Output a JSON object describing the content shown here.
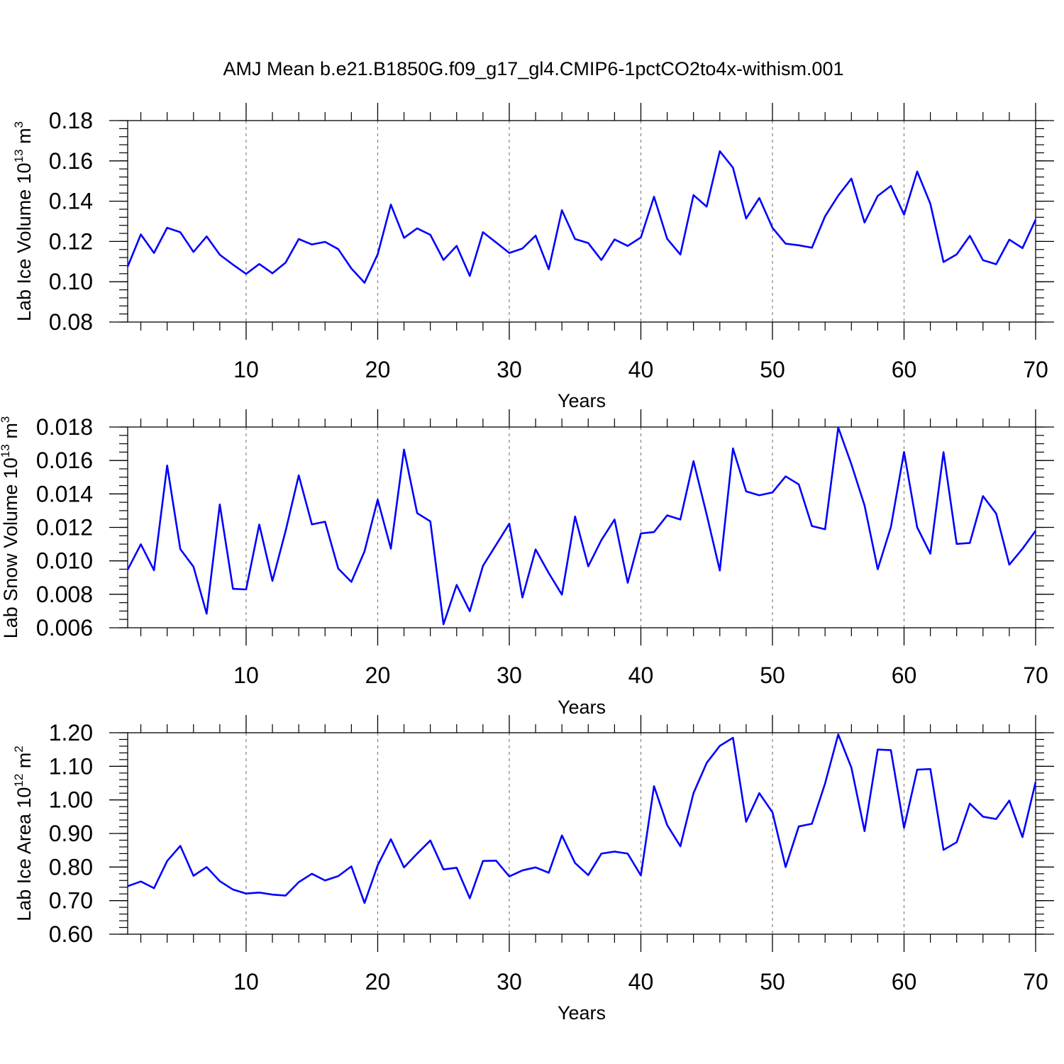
{
  "title": "AMJ Mean b.e21.B1850G.f09_g17_gl4.CMIP6-1pctCO2to4x-withism.001",
  "colors": {
    "line": "#0000ff",
    "axis": "#000000",
    "grid": "#808080"
  },
  "chart_data": [
    {
      "type": "line",
      "xlabel": "Years",
      "ylabel": {
        "text": "Lab Ice Volume 10",
        "sup1": "13",
        "mid": " m",
        "sup2": "3"
      },
      "xlim": [
        1,
        70
      ],
      "ylim": [
        0.08,
        0.18
      ],
      "grid": "vertical dashed at major x ticks",
      "x_ticks": [
        10,
        20,
        30,
        40,
        50,
        60,
        70
      ],
      "y_ticks": [
        "0.08",
        "0.10",
        "0.12",
        "0.14",
        "0.16",
        "0.18"
      ],
      "x": [
        1,
        2,
        3,
        4,
        5,
        6,
        7,
        8,
        9,
        10,
        11,
        12,
        13,
        14,
        15,
        16,
        17,
        18,
        19,
        20,
        21,
        22,
        23,
        24,
        25,
        26,
        27,
        28,
        29,
        30,
        31,
        32,
        33,
        34,
        35,
        36,
        37,
        38,
        39,
        40,
        41,
        42,
        43,
        44,
        45,
        46,
        47,
        48,
        49,
        50,
        51,
        52,
        53,
        54,
        55,
        56,
        57,
        58,
        59,
        60,
        61,
        62,
        63,
        64,
        65,
        66,
        67,
        68,
        69,
        70
      ],
      "values": [
        0.1075,
        0.1235,
        0.1143,
        0.1268,
        0.1246,
        0.1148,
        0.1225,
        0.1134,
        0.1085,
        0.1039,
        0.1088,
        0.1042,
        0.1095,
        0.1212,
        0.1185,
        0.1198,
        0.1162,
        0.1066,
        0.0995,
        0.1136,
        0.1383,
        0.1218,
        0.1265,
        0.1233,
        0.1108,
        0.1178,
        0.1029,
        0.1246,
        0.1195,
        0.1143,
        0.1165,
        0.1229,
        0.1062,
        0.1355,
        0.1212,
        0.1192,
        0.1108,
        0.121,
        0.1178,
        0.122,
        0.1422,
        0.1213,
        0.1135,
        0.143,
        0.1373,
        0.1648,
        0.1566,
        0.1314,
        0.1416,
        0.1268,
        0.1189,
        0.1181,
        0.1169,
        0.1325,
        0.1428,
        0.1512,
        0.1294,
        0.1426,
        0.1476,
        0.1333,
        0.1547,
        0.1387,
        0.1098,
        0.1136,
        0.1228,
        0.1107,
        0.1087,
        0.1209,
        0.1167,
        0.1308
      ]
    },
    {
      "type": "line",
      "xlabel": "Years",
      "ylabel": {
        "text": "Lab Snow Volume 10",
        "sup1": "13",
        "mid": " m",
        "sup2": "3"
      },
      "xlim": [
        1,
        70
      ],
      "ylim": [
        0.006,
        0.018
      ],
      "grid": "vertical dashed at major x ticks",
      "x_ticks": [
        10,
        20,
        30,
        40,
        50,
        60,
        70
      ],
      "y_ticks": [
        "0.006",
        "0.008",
        "0.010",
        "0.012",
        "0.014",
        "0.016",
        "0.018"
      ],
      "x": [
        1,
        2,
        3,
        4,
        5,
        6,
        7,
        8,
        9,
        10,
        11,
        12,
        13,
        14,
        15,
        16,
        17,
        18,
        19,
        20,
        21,
        22,
        23,
        24,
        25,
        26,
        27,
        28,
        29,
        30,
        31,
        32,
        33,
        34,
        35,
        36,
        37,
        38,
        39,
        40,
        41,
        42,
        43,
        44,
        45,
        46,
        47,
        48,
        49,
        50,
        51,
        52,
        53,
        54,
        55,
        56,
        57,
        58,
        59,
        60,
        61,
        62,
        63,
        64,
        65,
        66,
        67,
        68,
        69,
        70
      ],
      "values": [
        0.00947,
        0.01099,
        0.00944,
        0.0157,
        0.0107,
        0.00965,
        0.00684,
        0.01337,
        0.00833,
        0.00829,
        0.01217,
        0.0088,
        0.01178,
        0.01511,
        0.01218,
        0.01234,
        0.00954,
        0.00874,
        0.01057,
        0.01366,
        0.01073,
        0.01665,
        0.01285,
        0.01236,
        0.00621,
        0.00856,
        0.00699,
        0.0097,
        0.01096,
        0.01222,
        0.00781,
        0.01068,
        0.00927,
        0.00798,
        0.01265,
        0.00967,
        0.01124,
        0.01247,
        0.00869,
        0.01164,
        0.01172,
        0.01272,
        0.01247,
        0.01596,
        0.01277,
        0.00942,
        0.01672,
        0.01415,
        0.01392,
        0.01409,
        0.01505,
        0.01457,
        0.01208,
        0.01189,
        0.01797,
        0.01577,
        0.01331,
        0.0095,
        0.01202,
        0.01651,
        0.012,
        0.01043,
        0.0165,
        0.01101,
        0.01107,
        0.01387,
        0.01283,
        0.00977,
        0.01072,
        0.0118
      ]
    },
    {
      "type": "line",
      "xlabel": "Years",
      "ylabel": {
        "text": "Lab Ice Area 10",
        "sup1": "12",
        "mid": " m",
        "sup2": "2"
      },
      "xlim": [
        1,
        70
      ],
      "ylim": [
        0.6,
        1.2
      ],
      "grid": "vertical dashed at major x ticks",
      "x_ticks": [
        10,
        20,
        30,
        40,
        50,
        60,
        70
      ],
      "y_ticks": [
        "0.60",
        "0.70",
        "0.80",
        "0.90",
        "1.00",
        "1.10",
        "1.20"
      ],
      "x": [
        1,
        2,
        3,
        4,
        5,
        6,
        7,
        8,
        9,
        10,
        11,
        12,
        13,
        14,
        15,
        16,
        17,
        18,
        19,
        20,
        21,
        22,
        23,
        24,
        25,
        26,
        27,
        28,
        29,
        30,
        31,
        32,
        33,
        34,
        35,
        36,
        37,
        38,
        39,
        40,
        41,
        42,
        43,
        44,
        45,
        46,
        47,
        48,
        49,
        50,
        51,
        52,
        53,
        54,
        55,
        56,
        57,
        58,
        59,
        60,
        61,
        62,
        63,
        64,
        65,
        66,
        67,
        68,
        69,
        70
      ],
      "values": [
        0.743,
        0.757,
        0.737,
        0.818,
        0.863,
        0.774,
        0.8,
        0.758,
        0.733,
        0.721,
        0.724,
        0.718,
        0.715,
        0.755,
        0.78,
        0.76,
        0.773,
        0.802,
        0.693,
        0.805,
        0.883,
        0.799,
        0.84,
        0.879,
        0.793,
        0.798,
        0.707,
        0.818,
        0.819,
        0.772,
        0.79,
        0.799,
        0.783,
        0.894,
        0.812,
        0.776,
        0.84,
        0.846,
        0.84,
        0.775,
        1.041,
        0.925,
        0.862,
        1.02,
        1.11,
        1.161,
        1.185,
        0.935,
        1.02,
        0.963,
        0.8,
        0.921,
        0.929,
        1.049,
        1.195,
        1.096,
        0.907,
        1.15,
        1.148,
        0.917,
        1.09,
        1.092,
        0.851,
        0.874,
        0.989,
        0.95,
        0.943,
        0.998,
        0.889,
        1.053
      ]
    }
  ]
}
